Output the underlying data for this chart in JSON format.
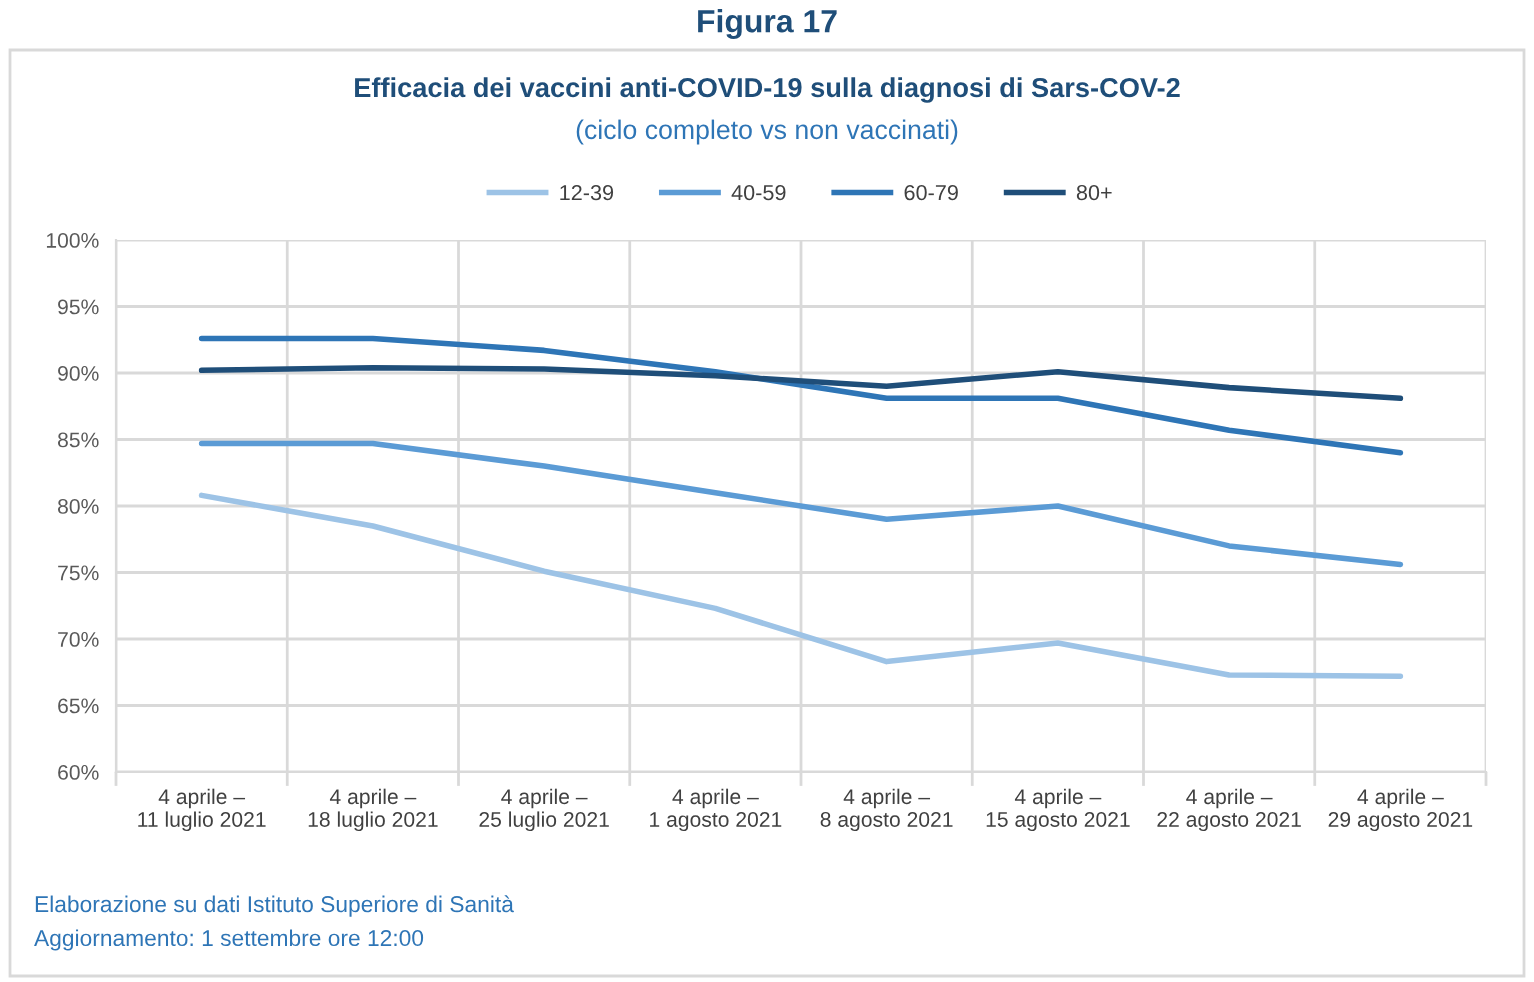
{
  "chart_data": {
    "type": "line",
    "title": "Efficacia dei vaccini anti-COVID-19 sulla diagnosi di Sars-COV-2",
    "subtitle": "(ciclo completo vs non vaccinati)",
    "categories": [
      "4 aprile –\n11 luglio 2021",
      "4 aprile –\n18 luglio 2021",
      "4 aprile –\n25 luglio 2021",
      "4 aprile –\n1 agosto 2021",
      "4 aprile –\n8 agosto 2021",
      "4 aprile –\n15 agosto 2021",
      "4 aprile –\n22 agosto 2021",
      "4 aprile –\n29 agosto 2021"
    ],
    "series": [
      {
        "name": "12-39",
        "color": "#9dc3e6",
        "values": [
          80.8,
          78.5,
          75.1,
          72.3,
          68.3,
          69.7,
          67.3,
          67.2
        ]
      },
      {
        "name": "40-59",
        "color": "#5b9bd5",
        "values": [
          84.7,
          84.7,
          83.0,
          81.0,
          79.0,
          80.0,
          77.0,
          75.6
        ]
      },
      {
        "name": "60-79",
        "color": "#2e75b6",
        "values": [
          92.6,
          92.6,
          91.7,
          90.1,
          88.1,
          88.1,
          85.7,
          84.0
        ]
      },
      {
        "name": "80+",
        "color": "#1f4e79",
        "values": [
          90.2,
          90.4,
          90.3,
          89.8,
          89.0,
          90.1,
          88.9,
          88.1
        ]
      }
    ],
    "ylim": [
      60,
      100
    ],
    "yticks": [
      {
        "value": 60,
        "label": "60%"
      },
      {
        "value": 65,
        "label": "65%"
      },
      {
        "value": 70,
        "label": "70%"
      },
      {
        "value": 75,
        "label": "75%"
      },
      {
        "value": 80,
        "label": "80%"
      },
      {
        "value": 85,
        "label": "85%"
      },
      {
        "value": 90,
        "label": "90%"
      },
      {
        "value": 95,
        "label": "95%"
      },
      {
        "value": 100,
        "label": "100%"
      }
    ],
    "grid": true,
    "legend": "top",
    "line_style": "solid",
    "annotations": [
      "Figura 17",
      "Elaborazione su dati Istituto Superiore di Sanità",
      "Aggiornamento: 1 settembre ore 12:00"
    ]
  }
}
